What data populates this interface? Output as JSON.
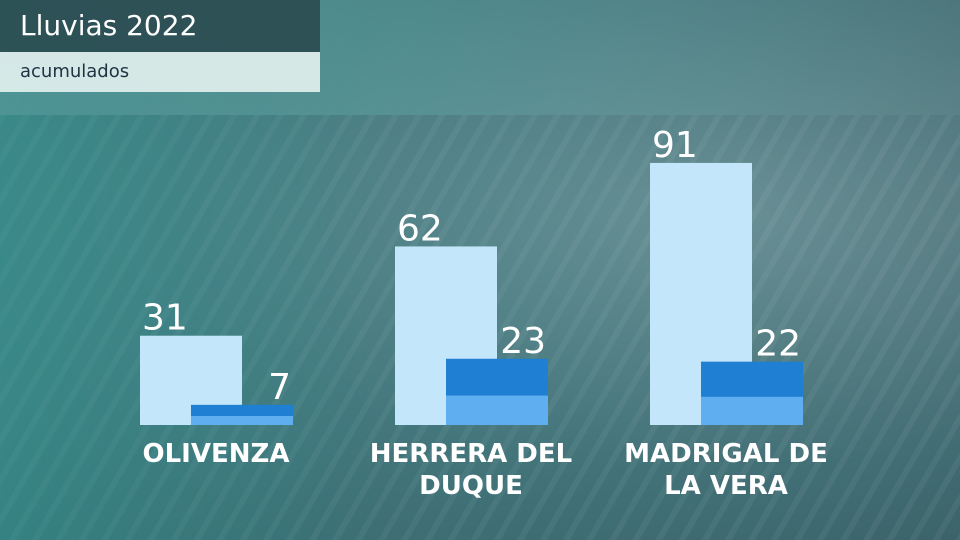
{
  "chart_data": {
    "type": "bar",
    "title": "Lluvias 2022",
    "subtitle": "acumulados",
    "categories": [
      "OLIVENZA",
      "HERRERA DEL DUQUE",
      "MADRIGAL DE LA VERA"
    ],
    "series": [
      {
        "color": "#c4e6fb",
        "values": [
          31,
          62,
          91
        ]
      },
      {
        "color": "#1f7fd2",
        "values": [
          7,
          23,
          22
        ]
      }
    ],
    "ylim": [
      0,
      100
    ]
  }
}
